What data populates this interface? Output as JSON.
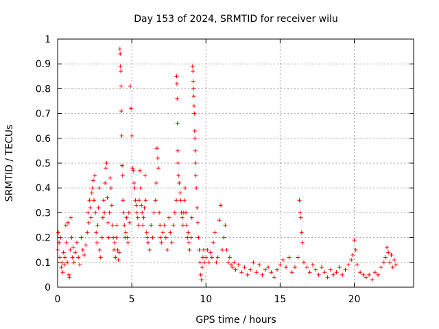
{
  "chart_data": {
    "type": "scatter",
    "title": "Day 153 of 2024, SRMTID for receiver wilu",
    "xlabel": "GPS time / hours",
    "ylabel": "SRMTID / TECUs",
    "xlim": [
      0,
      24
    ],
    "ylim": [
      0,
      1
    ],
    "xticks": [
      0,
      5,
      10,
      15,
      20
    ],
    "yticks": [
      0,
      0.1,
      0.2,
      0.3,
      0.4,
      0.5,
      0.6,
      0.7,
      0.8,
      0.9,
      1
    ],
    "xtick_labels": [
      "0",
      "5",
      "10",
      "15",
      "20"
    ],
    "ytick_labels": [
      "0",
      "0.1",
      "0.2",
      "0.3",
      "0.4",
      "0.5",
      "0.6",
      "0.7",
      "0.8",
      "0.9",
      "1"
    ],
    "grid": true,
    "marker": "+",
    "color": "#ff0000",
    "series": [
      {
        "name": "SRMTID",
        "points": [
          [
            0.0,
            0.15
          ],
          [
            0.05,
            0.22
          ],
          [
            0.1,
            0.18
          ],
          [
            0.15,
            0.12
          ],
          [
            0.2,
            0.2
          ],
          [
            0.25,
            0.08
          ],
          [
            0.3,
            0.1
          ],
          [
            0.35,
            0.06
          ],
          [
            0.4,
            0.14
          ],
          [
            0.45,
            0.09
          ],
          [
            0.5,
            0.12
          ],
          [
            0.55,
            0.25
          ],
          [
            0.6,
            0.18
          ],
          [
            0.65,
            0.1
          ],
          [
            0.7,
            0.26
          ],
          [
            0.75,
            0.05
          ],
          [
            0.8,
            0.04
          ],
          [
            0.85,
            0.15
          ],
          [
            0.9,
            0.28
          ],
          [
            0.95,
            0.2
          ],
          [
            1.0,
            0.12
          ],
          [
            1.05,
            0.16
          ],
          [
            1.1,
            0.1
          ],
          [
            1.2,
            0.14
          ],
          [
            1.3,
            0.18
          ],
          [
            1.4,
            0.12
          ],
          [
            1.5,
            0.09
          ],
          [
            1.6,
            0.2
          ],
          [
            1.7,
            0.15
          ],
          [
            1.8,
            0.13
          ],
          [
            1.9,
            0.17
          ],
          [
            2.0,
            0.22
          ],
          [
            2.05,
            0.3
          ],
          [
            2.1,
            0.26
          ],
          [
            2.15,
            0.35
          ],
          [
            2.2,
            0.32
          ],
          [
            2.25,
            0.28
          ],
          [
            2.3,
            0.38
          ],
          [
            2.35,
            0.4
          ],
          [
            2.4,
            0.43
          ],
          [
            2.45,
            0.35
          ],
          [
            2.5,
            0.45
          ],
          [
            2.55,
            0.3
          ],
          [
            2.6,
            0.22
          ],
          [
            2.65,
            0.18
          ],
          [
            2.7,
            0.25
          ],
          [
            2.75,
            0.32
          ],
          [
            2.8,
            0.4
          ],
          [
            2.85,
            0.15
          ],
          [
            2.9,
            0.12
          ],
          [
            3.0,
            0.2
          ],
          [
            3.05,
            0.28
          ],
          [
            3.1,
            0.35
          ],
          [
            3.15,
            0.3
          ],
          [
            3.2,
            0.42
          ],
          [
            3.25,
            0.48
          ],
          [
            3.3,
            0.5
          ],
          [
            3.35,
            0.36
          ],
          [
            3.4,
            0.26
          ],
          [
            3.45,
            0.2
          ],
          [
            3.5,
            0.3
          ],
          [
            3.55,
            0.44
          ],
          [
            3.6,
            0.4
          ],
          [
            3.65,
            0.33
          ],
          [
            3.7,
            0.25
          ],
          [
            3.75,
            0.2
          ],
          [
            3.8,
            0.15
          ],
          [
            3.85,
            0.18
          ],
          [
            3.9,
            0.12
          ],
          [
            3.95,
            0.2
          ],
          [
            4.0,
            0.25
          ],
          [
            4.05,
            0.15
          ],
          [
            4.1,
            0.11
          ],
          [
            4.15,
            0.14
          ],
          [
            4.2,
            0.96
          ],
          [
            4.22,
            0.94
          ],
          [
            4.24,
            0.89
          ],
          [
            4.26,
            0.87
          ],
          [
            4.28,
            0.81
          ],
          [
            4.3,
            0.71
          ],
          [
            4.32,
            0.61
          ],
          [
            4.35,
            0.49
          ],
          [
            4.38,
            0.45
          ],
          [
            4.4,
            0.35
          ],
          [
            4.45,
            0.3
          ],
          [
            4.5,
            0.25
          ],
          [
            4.55,
            0.2
          ],
          [
            4.6,
            0.22
          ],
          [
            4.65,
            0.28
          ],
          [
            4.7,
            0.2
          ],
          [
            4.75,
            0.18
          ],
          [
            4.8,
            0.3
          ],
          [
            4.85,
            0.26
          ],
          [
            4.9,
            0.81
          ],
          [
            4.95,
            0.72
          ],
          [
            5.0,
            0.61
          ],
          [
            5.05,
            0.48
          ],
          [
            5.1,
            0.47
          ],
          [
            5.15,
            0.42
          ],
          [
            5.2,
            0.4
          ],
          [
            5.25,
            0.35
          ],
          [
            5.3,
            0.33
          ],
          [
            5.35,
            0.3
          ],
          [
            5.4,
            0.28
          ],
          [
            5.45,
            0.25
          ],
          [
            5.5,
            0.35
          ],
          [
            5.55,
            0.47
          ],
          [
            5.6,
            0.4
          ],
          [
            5.65,
            0.33
          ],
          [
            5.7,
            0.3
          ],
          [
            5.75,
            0.25
          ],
          [
            5.8,
            0.28
          ],
          [
            5.85,
            0.32
          ],
          [
            5.9,
            0.45
          ],
          [
            5.95,
            0.35
          ],
          [
            6.0,
            0.22
          ],
          [
            6.05,
            0.2
          ],
          [
            6.1,
            0.18
          ],
          [
            6.2,
            0.15
          ],
          [
            6.3,
            0.25
          ],
          [
            6.4,
            0.2
          ],
          [
            6.5,
            0.3
          ],
          [
            6.6,
            0.35
          ],
          [
            6.65,
            0.42
          ],
          [
            6.7,
            0.56
          ],
          [
            6.75,
            0.52
          ],
          [
            6.8,
            0.48
          ],
          [
            6.85,
            0.3
          ],
          [
            6.9,
            0.25
          ],
          [
            6.95,
            0.2
          ],
          [
            7.0,
            0.18
          ],
          [
            7.1,
            0.22
          ],
          [
            7.2,
            0.25
          ],
          [
            7.3,
            0.2
          ],
          [
            7.4,
            0.15
          ],
          [
            7.5,
            0.28
          ],
          [
            7.6,
            0.22
          ],
          [
            7.7,
            0.18
          ],
          [
            7.8,
            0.25
          ],
          [
            7.9,
            0.3
          ],
          [
            8.0,
            0.35
          ],
          [
            8.02,
            0.85
          ],
          [
            8.04,
            0.82
          ],
          [
            8.06,
            0.76
          ],
          [
            8.08,
            0.66
          ],
          [
            8.1,
            0.55
          ],
          [
            8.12,
            0.5
          ],
          [
            8.15,
            0.45
          ],
          [
            8.2,
            0.42
          ],
          [
            8.25,
            0.38
          ],
          [
            8.3,
            0.35
          ],
          [
            8.35,
            0.3
          ],
          [
            8.4,
            0.28
          ],
          [
            8.45,
            0.25
          ],
          [
            8.5,
            0.3
          ],
          [
            8.55,
            0.35
          ],
          [
            8.6,
            0.4
          ],
          [
            8.65,
            0.3
          ],
          [
            8.7,
            0.25
          ],
          [
            8.75,
            0.2
          ],
          [
            8.8,
            0.22
          ],
          [
            8.85,
            0.18
          ],
          [
            8.9,
            0.15
          ],
          [
            9.0,
            0.2
          ],
          [
            9.05,
            0.28
          ],
          [
            9.1,
            0.89
          ],
          [
            9.12,
            0.87
          ],
          [
            9.14,
            0.83
          ],
          [
            9.16,
            0.8
          ],
          [
            9.18,
            0.77
          ],
          [
            9.2,
            0.73
          ],
          [
            9.22,
            0.7
          ],
          [
            9.24,
            0.63
          ],
          [
            9.26,
            0.6
          ],
          [
            9.28,
            0.55
          ],
          [
            9.3,
            0.5
          ],
          [
            9.32,
            0.45
          ],
          [
            9.35,
            0.4
          ],
          [
            9.4,
            0.32
          ],
          [
            9.45,
            0.26
          ],
          [
            9.5,
            0.2
          ],
          [
            9.55,
            0.15
          ],
          [
            9.6,
            0.1
          ],
          [
            9.65,
            0.05
          ],
          [
            9.7,
            0.03
          ],
          [
            9.75,
            0.08
          ],
          [
            9.8,
            0.12
          ],
          [
            9.85,
            0.15
          ],
          [
            9.9,
            0.1
          ],
          [
            10.0,
            0.12
          ],
          [
            10.1,
            0.15
          ],
          [
            10.2,
            0.1
          ],
          [
            10.3,
            0.14
          ],
          [
            10.4,
            0.12
          ],
          [
            10.5,
            0.18
          ],
          [
            10.6,
            0.22
          ],
          [
            10.7,
            0.1
          ],
          [
            10.8,
            0.12
          ],
          [
            10.9,
            0.27
          ],
          [
            11.0,
            0.33
          ],
          [
            11.1,
            0.15
          ],
          [
            11.2,
            0.2
          ],
          [
            11.3,
            0.25
          ],
          [
            11.4,
            0.15
          ],
          [
            11.5,
            0.1
          ],
          [
            11.6,
            0.12
          ],
          [
            11.7,
            0.09
          ],
          [
            11.8,
            0.08
          ],
          [
            11.9,
            0.1
          ],
          [
            12.0,
            0.07
          ],
          [
            12.2,
            0.09
          ],
          [
            12.4,
            0.06
          ],
          [
            12.6,
            0.08
          ],
          [
            12.8,
            0.05
          ],
          [
            13.0,
            0.07
          ],
          [
            13.2,
            0.1
          ],
          [
            13.4,
            0.06
          ],
          [
            13.6,
            0.09
          ],
          [
            13.8,
            0.05
          ],
          [
            14.0,
            0.07
          ],
          [
            14.2,
            0.08
          ],
          [
            14.4,
            0.06
          ],
          [
            14.6,
            0.04
          ],
          [
            14.8,
            0.07
          ],
          [
            15.0,
            0.09
          ],
          [
            15.2,
            0.11
          ],
          [
            15.4,
            0.08
          ],
          [
            15.6,
            0.12
          ],
          [
            15.8,
            0.06
          ],
          [
            16.0,
            0.08
          ],
          [
            16.2,
            0.12
          ],
          [
            16.3,
            0.35
          ],
          [
            16.35,
            0.3
          ],
          [
            16.4,
            0.28
          ],
          [
            16.45,
            0.22
          ],
          [
            16.5,
            0.18
          ],
          [
            16.6,
            0.1
          ],
          [
            16.8,
            0.08
          ],
          [
            17.0,
            0.06
          ],
          [
            17.2,
            0.09
          ],
          [
            17.4,
            0.07
          ],
          [
            17.6,
            0.05
          ],
          [
            17.8,
            0.08
          ],
          [
            18.0,
            0.06
          ],
          [
            18.2,
            0.04
          ],
          [
            18.4,
            0.07
          ],
          [
            18.6,
            0.05
          ],
          [
            18.8,
            0.06
          ],
          [
            19.0,
            0.08
          ],
          [
            19.2,
            0.05
          ],
          [
            19.4,
            0.07
          ],
          [
            19.6,
            0.09
          ],
          [
            19.8,
            0.11
          ],
          [
            19.9,
            0.13
          ],
          [
            20.0,
            0.19
          ],
          [
            20.1,
            0.15
          ],
          [
            20.2,
            0.09
          ],
          [
            20.4,
            0.06
          ],
          [
            20.6,
            0.05
          ],
          [
            20.8,
            0.04
          ],
          [
            21.0,
            0.05
          ],
          [
            21.2,
            0.03
          ],
          [
            21.4,
            0.06
          ],
          [
            21.6,
            0.05
          ],
          [
            21.8,
            0.08
          ],
          [
            22.0,
            0.1
          ],
          [
            22.1,
            0.12
          ],
          [
            22.2,
            0.16
          ],
          [
            22.3,
            0.14
          ],
          [
            22.4,
            0.1
          ],
          [
            22.5,
            0.13
          ],
          [
            22.6,
            0.08
          ],
          [
            22.7,
            0.11
          ],
          [
            22.8,
            0.09
          ]
        ]
      }
    ]
  }
}
